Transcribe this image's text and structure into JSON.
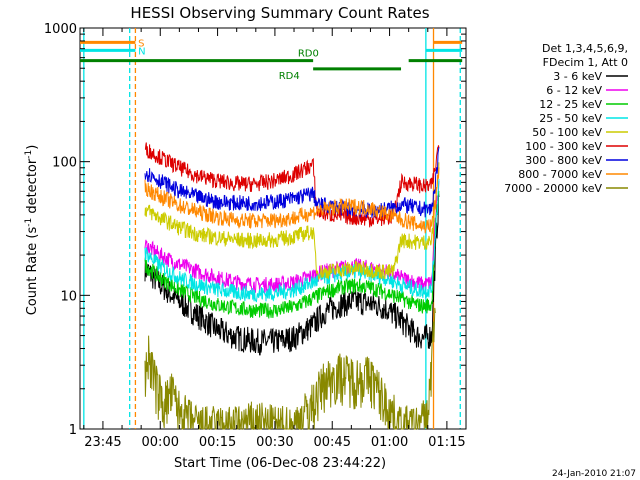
{
  "chart_data": {
    "type": "line",
    "title": "HESSI Observing Summary Count Rates",
    "xlabel": "Start Time (06-Dec-08 23:44:22)",
    "ylabel_main": "Count Rate (s",
    "ylabel_sup1": "-1",
    "ylabel_mid": " detector",
    "ylabel_sup2": "-1",
    "ylabel_end": ")",
    "yscale": "log",
    "ylim": [
      1,
      1000
    ],
    "xlim_minutes": [
      -6,
      95
    ],
    "x_ticks": [
      {
        "label": "23:45",
        "minutes": 0
      },
      {
        "label": "00:00",
        "minutes": 15
      },
      {
        "label": "00:15",
        "minutes": 30
      },
      {
        "label": "00:30",
        "minutes": 45
      },
      {
        "label": "00:45",
        "minutes": 60
      },
      {
        "label": "01:00",
        "minutes": 75
      },
      {
        "label": "01:15",
        "minutes": 90
      }
    ],
    "y_ticks": [
      {
        "label": "1",
        "value": 1
      },
      {
        "label": "10",
        "value": 10
      },
      {
        "label": "100",
        "value": 100
      },
      {
        "label": "1000",
        "value": 1000
      }
    ],
    "timestamp": "24-Jan-2010 21:07",
    "legend": {
      "placement": "top-right",
      "header": [
        "Det 1,3,4,5,6,9,",
        "FDecim 1, Att 0"
      ],
      "entries": [
        {
          "label": "3 - 6 keV",
          "color": "#000000"
        },
        {
          "label": "6 - 12 keV",
          "color": "#ee00ee"
        },
        {
          "label": "12 - 25 keV",
          "color": "#00cc00"
        },
        {
          "label": "25 - 50 keV",
          "color": "#00e5e5"
        },
        {
          "label": "50 - 100 keV",
          "color": "#cccc00"
        },
        {
          "label": "100 - 300 keV",
          "color": "#dd0000"
        },
        {
          "label": "300 - 800 keV",
          "color": "#0000dd"
        },
        {
          "label": "800 - 7000 keV",
          "color": "#ff8800"
        },
        {
          "label": "7000 - 20000 keV",
          "color": "#888800"
        }
      ]
    },
    "flags": [
      {
        "label": "S",
        "color": "#ff8800",
        "value": 780,
        "segments": [
          [
            -6,
            8.5
          ],
          [
            86.5,
            94
          ]
        ]
      },
      {
        "label": "N",
        "color": "#00e5e5",
        "value": 680,
        "segments": [
          [
            -6,
            8.5
          ],
          [
            84.5,
            94
          ]
        ]
      },
      {
        "label": "RD0",
        "color": "#008000",
        "value": 570,
        "segments": [
          [
            -6,
            55
          ],
          [
            80,
            94
          ]
        ]
      },
      {
        "label": "RD4",
        "color": "#008000",
        "value": 495,
        "segments": [
          [
            55,
            78
          ]
        ]
      }
    ],
    "vertical_lines": [
      {
        "minutes": -5,
        "color": "#00e5e5",
        "style": "solid"
      },
      {
        "minutes": 7,
        "color": "#00e5e5",
        "style": "dashed"
      },
      {
        "minutes": 8.5,
        "color": "#ff8800",
        "style": "dashed"
      },
      {
        "minutes": 84.5,
        "color": "#00e5e5",
        "style": "solid"
      },
      {
        "minutes": 86.5,
        "color": "#ff8800",
        "style": "solid"
      },
      {
        "minutes": 93.5,
        "color": "#00e5e5",
        "style": "dashed"
      }
    ],
    "series": [
      {
        "name": "3 - 6 keV",
        "color": "#000000",
        "x": [
          11,
          15,
          20,
          25,
          30,
          35,
          40,
          45,
          50,
          55,
          58,
          62,
          66,
          70,
          74,
          78,
          82,
          84,
          86,
          87,
          88
        ],
        "values": [
          16,
          12,
          9,
          7,
          5.5,
          4.8,
          4.5,
          4.5,
          4.8,
          6,
          7.5,
          8.5,
          9,
          8.7,
          8,
          6.5,
          5,
          4.8,
          5,
          20,
          60
        ]
      },
      {
        "name": "6 - 12 keV",
        "color": "#ee00ee",
        "x": [
          11,
          15,
          20,
          25,
          30,
          35,
          40,
          45,
          50,
          55,
          58,
          62,
          66,
          70,
          74,
          78,
          82,
          84,
          86,
          87,
          88
        ],
        "values": [
          24,
          20,
          17,
          15,
          13.5,
          12.5,
          12,
          12,
          12.5,
          14,
          15,
          16,
          16.5,
          16,
          15,
          13.5,
          12.5,
          12,
          12.5,
          35,
          80
        ]
      },
      {
        "name": "12 - 25 keV",
        "color": "#00cc00",
        "x": [
          11,
          15,
          20,
          25,
          30,
          35,
          40,
          45,
          50,
          55,
          58,
          62,
          66,
          70,
          74,
          78,
          82,
          84,
          86,
          87,
          88
        ],
        "values": [
          17,
          13.5,
          11,
          9.5,
          8.5,
          8,
          7.7,
          7.7,
          8.2,
          9.5,
          10.5,
          11.5,
          11.8,
          11.5,
          10.5,
          9.5,
          8.5,
          8.3,
          8.5,
          30,
          70
        ]
      },
      {
        "name": "25 - 50 keV",
        "color": "#00e5e5",
        "x": [
          11,
          15,
          20,
          25,
          30,
          35,
          40,
          45,
          50,
          55,
          58,
          62,
          66,
          70,
          74,
          78,
          82,
          84,
          86,
          87,
          88
        ],
        "values": [
          21,
          16.5,
          13.5,
          12,
          11,
          10.5,
          10.2,
          10.4,
          11,
          12.5,
          13.5,
          14.5,
          15,
          14.5,
          13.5,
          12,
          11,
          10.8,
          11,
          30,
          75
        ]
      },
      {
        "name": "50 - 100 keV",
        "color": "#cccc00",
        "x": [
          11,
          15,
          20,
          25,
          30,
          35,
          40,
          45,
          50,
          55,
          56,
          58,
          62,
          66,
          70,
          74,
          76,
          78,
          82,
          84,
          86,
          87,
          88
        ],
        "values": [
          44,
          38,
          32,
          28.5,
          27,
          26,
          25.5,
          26,
          27.5,
          30,
          15,
          15,
          15.5,
          16,
          15.5,
          15,
          15,
          26,
          25,
          25,
          25.5,
          50,
          95
        ]
      },
      {
        "name": "100 - 300 keV",
        "color": "#dd0000",
        "x": [
          11,
          15,
          20,
          25,
          30,
          35,
          40,
          45,
          50,
          55,
          56,
          60,
          66,
          70,
          74,
          76,
          78,
          82,
          84,
          86,
          87,
          88
        ],
        "values": [
          125,
          108,
          90,
          78,
          72,
          68,
          68,
          72,
          80,
          95,
          42,
          40,
          38,
          37,
          38,
          39,
          70,
          68,
          65,
          66,
          90,
          150
        ]
      },
      {
        "name": "300 - 800 keV",
        "color": "#0000dd",
        "x": [
          11,
          15,
          20,
          25,
          30,
          35,
          40,
          45,
          50,
          55,
          56,
          60,
          66,
          70,
          74,
          76,
          78,
          82,
          84,
          86,
          87,
          88
        ],
        "values": [
          84,
          72,
          60,
          54,
          50,
          49,
          49,
          50,
          53,
          58,
          48,
          46,
          44,
          43,
          44,
          45,
          48,
          45,
          44,
          44,
          70,
          120
        ]
      },
      {
        "name": "800 - 7000 keV",
        "color": "#ff8800",
        "x": [
          11,
          15,
          20,
          25,
          30,
          35,
          40,
          45,
          50,
          55,
          58,
          62,
          66,
          70,
          74,
          78,
          82,
          84,
          86,
          87,
          88
        ],
        "values": [
          64,
          55,
          47,
          42,
          38.5,
          36.5,
          36,
          36.5,
          38,
          42,
          44,
          46,
          46.5,
          45,
          41,
          37,
          34,
          33,
          33,
          50,
          95
        ]
      },
      {
        "name": "7000 - 20000 keV",
        "color": "#888800",
        "x": [
          11,
          12,
          14,
          16,
          18,
          20,
          25,
          30,
          35,
          40,
          45,
          50,
          55,
          58,
          62,
          66,
          70,
          74,
          78,
          82,
          85,
          86,
          87
        ],
        "values": [
          2.5,
          3.5,
          2,
          1.5,
          1.8,
          1.3,
          1,
          1,
          1,
          1.1,
          1,
          1,
          1.5,
          2.2,
          2.5,
          2.3,
          2.4,
          1.5,
          1,
          1,
          1.2,
          3,
          8
        ]
      }
    ]
  }
}
